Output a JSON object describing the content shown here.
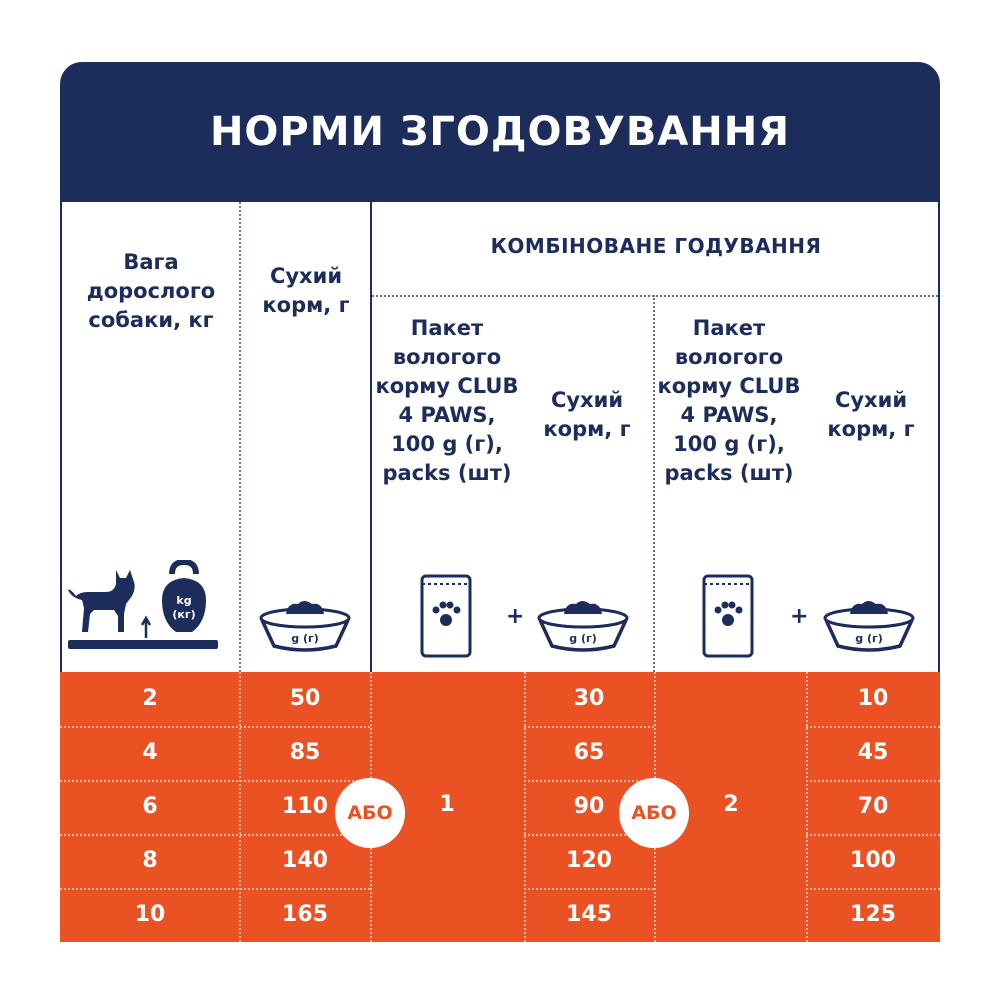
{
  "title": "НОРМИ ЗГОДОВУВАННЯ",
  "columns": {
    "weight": "Вага дорослого собаки, кг",
    "dry": "Сухий корм, г",
    "combined": "КОМБІНОВАНЕ ГОДУВАННЯ",
    "wet_pack": "Пакет вологого корму CLUB 4 PAWS, 100 g (г), packs (шт)",
    "dry_combo": "Сухий корм, г"
  },
  "icons": {
    "kettlebell_label_1": "kg",
    "kettlebell_label_2": "(кг)",
    "bowl_label": "g (г)",
    "plus": "+"
  },
  "rows": [
    {
      "weight": "2",
      "dry": "50",
      "dry1": "30",
      "dry2": "10"
    },
    {
      "weight": "4",
      "dry": "85",
      "dry1": "65",
      "dry2": "45"
    },
    {
      "weight": "6",
      "dry": "110",
      "dry1": "90",
      "dry2": "70"
    },
    {
      "weight": "8",
      "dry": "140",
      "dry1": "120",
      "dry2": "100"
    },
    {
      "weight": "10",
      "dry": "165",
      "dry1": "145",
      "dry2": "125"
    }
  ],
  "or_label": "АБО",
  "packs": [
    "1",
    "2"
  ],
  "colors": {
    "navy": "#1c2c5b",
    "orange": "#ea5123",
    "white": "#ffffff"
  }
}
